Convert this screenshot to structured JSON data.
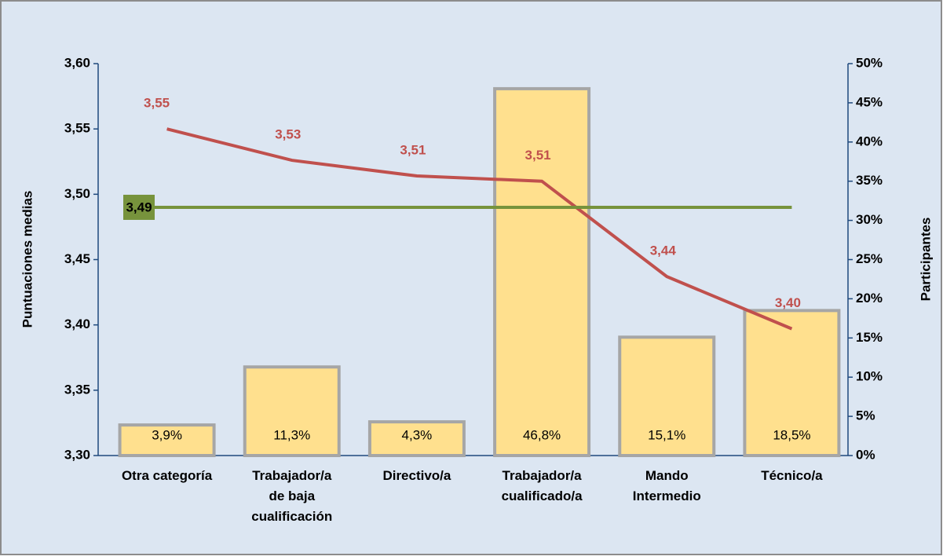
{
  "chart_data": {
    "type": "bar_line",
    "categories": [
      "Otra categoría",
      "Trabajador/a de baja cualificación",
      "Directivo/a",
      "Trabajador/a cualificado/a",
      "Mando Intermedio",
      "Técnico/a"
    ],
    "ylabel": "Puntuaciones medias",
    "y2label": "Participantes",
    "ylim": [
      3.3,
      3.6
    ],
    "yticks": [
      {
        "value": 3.3,
        "label": "3,30"
      },
      {
        "value": 3.35,
        "label": "3,35"
      },
      {
        "value": 3.4,
        "label": "3,40"
      },
      {
        "value": 3.45,
        "label": "3,45"
      },
      {
        "value": 3.5,
        "label": "3,50"
      },
      {
        "value": 3.55,
        "label": "3,55"
      },
      {
        "value": 3.6,
        "label": "3,60"
      }
    ],
    "y2lim": [
      0,
      50
    ],
    "y2ticks": [
      {
        "value": 0,
        "label": "0%"
      },
      {
        "value": 5,
        "label": "5%"
      },
      {
        "value": 10,
        "label": "10%"
      },
      {
        "value": 15,
        "label": "15%"
      },
      {
        "value": 20,
        "label": "20%"
      },
      {
        "value": 25,
        "label": "25%"
      },
      {
        "value": 30,
        "label": "30%"
      },
      {
        "value": 35,
        "label": "35%"
      },
      {
        "value": 40,
        "label": "40%"
      },
      {
        "value": 45,
        "label": "45%"
      },
      {
        "value": 50,
        "label": "50%"
      }
    ],
    "series": [
      {
        "type": "bar",
        "axis": "y2",
        "color": "#ffe08e",
        "values": [
          3.9,
          11.3,
          4.3,
          46.8,
          15.1,
          18.5
        ],
        "value_labels": [
          "3,9%",
          "11,3%",
          "4,3%",
          "46,8%",
          "15,1%",
          "18,5%"
        ]
      },
      {
        "type": "line",
        "color": "#c0504d",
        "values": [
          3.55,
          3.526,
          3.514,
          3.51,
          3.437,
          3.397
        ],
        "value_labels": [
          "3,55",
          "3,53",
          "3,51",
          "3,51",
          "3,44",
          "3,40"
        ]
      }
    ],
    "reference": {
      "value": 3.49,
      "label": "3,49",
      "color": "#77933c"
    }
  }
}
